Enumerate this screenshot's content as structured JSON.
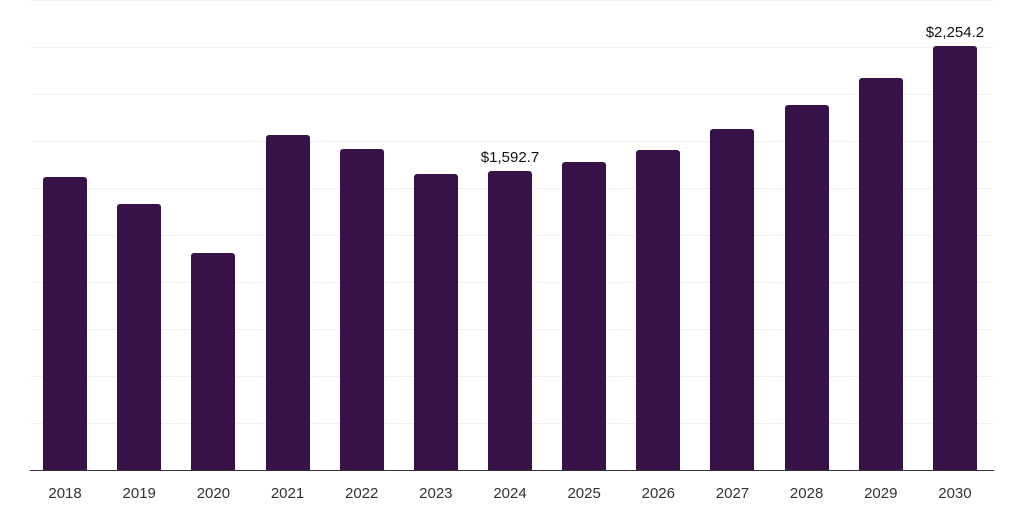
{
  "chart_data": {
    "type": "bar",
    "title": "",
    "xlabel": "",
    "ylabel": "",
    "categories": [
      "2018",
      "2019",
      "2020",
      "2021",
      "2022",
      "2023",
      "2024",
      "2025",
      "2026",
      "2027",
      "2028",
      "2029",
      "2030"
    ],
    "values": [
      1561,
      1417,
      1156,
      1780,
      1710,
      1577,
      1592.7,
      1636,
      1700,
      1812,
      1940,
      2084,
      2254.2
    ],
    "data_labels": [
      {
        "category": "2024",
        "text": "$1,592.7"
      },
      {
        "category": "2030",
        "text": "$2,254.2"
      }
    ],
    "ylim": [
      0,
      2500
    ],
    "grid": true,
    "gridline_step": 250,
    "y_axis_visible": false,
    "legend": null,
    "bar_color": "#371249",
    "units": "USD"
  }
}
